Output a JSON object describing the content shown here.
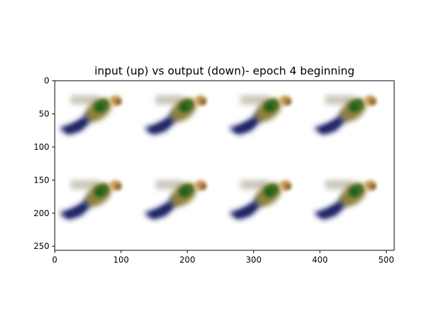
{
  "chart_data": {
    "type": "image",
    "title": "input (up) vs output (down)- epoch 4 beginning",
    "xlabel": "",
    "ylabel": "",
    "xlim": [
      0,
      512
    ],
    "ylim": [
      256,
      0
    ],
    "xticks": [
      0,
      100,
      200,
      300,
      400,
      500
    ],
    "yticks": [
      0,
      50,
      100,
      150,
      200,
      250
    ],
    "grid": false,
    "legend": "none",
    "image_grid": {
      "rows": 2,
      "cols": 4,
      "tile_width": 128,
      "tile_height": 128,
      "rows_meaning": [
        "input",
        "output"
      ]
    },
    "sprite_colors": {
      "trail": "#c8c4b8",
      "tail": "#2a3376",
      "tail_dark": "#1c235a",
      "body": "#8c7f3c",
      "body_green": "#3e6e24",
      "core": "#1f5a1a",
      "head": "#c79b55",
      "head_dark": "#6b4a2a"
    }
  }
}
